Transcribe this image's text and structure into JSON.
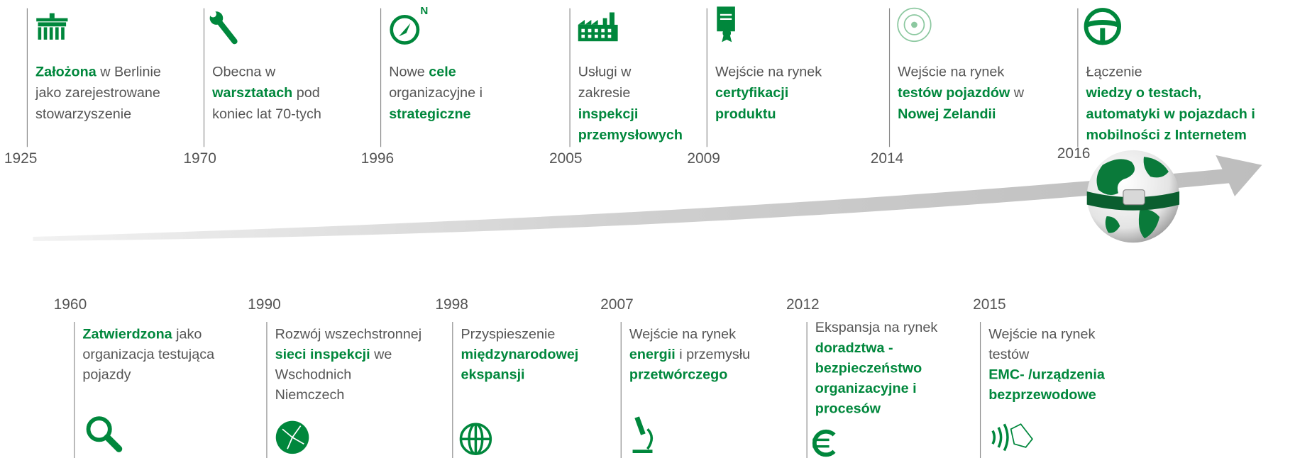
{
  "top_events": [
    {
      "year": "1925",
      "lines": [
        [
          {
            "text": "Założona",
            "emphasis": true
          },
          {
            "text": " w Berlinie"
          }
        ],
        [
          {
            "text": "jako zarejestrowane"
          }
        ],
        [
          {
            "text": "stowarzyszenie"
          }
        ]
      ]
    },
    {
      "year": "1970",
      "lines": [
        [
          {
            "text": "Obecna w"
          }
        ],
        [
          {
            "text": "warsztatach",
            "emphasis": true
          },
          {
            "text": " pod"
          }
        ],
        [
          {
            "text": "koniec lat 70-tych"
          }
        ]
      ]
    },
    {
      "year": "1996",
      "icon_label": "N",
      "lines": [
        [
          {
            "text": "Nowe "
          },
          {
            "text": "cele",
            "emphasis": true
          }
        ],
        [
          {
            "text": "organizacyjne i"
          }
        ],
        [
          {
            "text": "strategiczne",
            "emphasis": true
          }
        ]
      ]
    },
    {
      "year": "2005",
      "lines": [
        [
          {
            "text": "Usługi w"
          }
        ],
        [
          {
            "text": "zakresie"
          }
        ],
        [
          {
            "text": "inspekcji",
            "emphasis": true
          }
        ],
        [
          {
            "text": "przemysłowych",
            "emphasis": true
          }
        ]
      ]
    },
    {
      "year": "2009",
      "lines": [
        [
          {
            "text": "Wejście na rynek"
          }
        ],
        [
          {
            "text": "certyfikacji",
            "emphasis": true
          }
        ],
        [
          {
            "text": "produktu",
            "emphasis": true
          }
        ]
      ]
    },
    {
      "year": "2014",
      "lines": [
        [
          {
            "text": "Wejście na rynek"
          }
        ],
        [
          {
            "text": "testów pojazdów",
            "emphasis": true
          },
          {
            "text": " w"
          }
        ],
        [
          {
            "text": "Nowej Zelandii",
            "emphasis": true
          }
        ]
      ]
    },
    {
      "year": "2016",
      "lines": [
        [
          {
            "text": "Łączenie"
          }
        ],
        [
          {
            "text": "wiedzy o testach,",
            "emphasis": true
          }
        ],
        [
          {
            "text": "automatyki w pojazdach i",
            "emphasis": true
          }
        ],
        [
          {
            "text": "mobilności z Internetem",
            "emphasis": true
          }
        ]
      ]
    }
  ],
  "bottom_events": [
    {
      "year": "1960",
      "lines": [
        [
          {
            "text": "Zatwierdzona",
            "emphasis": true
          },
          {
            "text": " jako"
          }
        ],
        [
          {
            "text": "organizacja testująca"
          }
        ],
        [
          {
            "text": "pojazdy"
          }
        ]
      ]
    },
    {
      "year": "1990",
      "lines": [
        [
          {
            "text": "Rozwój wszechstronnej"
          }
        ],
        [
          {
            "text": "sieci inspekcji",
            "emphasis": true
          },
          {
            "text": " we"
          }
        ],
        [
          {
            "text": "Wschodnich"
          }
        ],
        [
          {
            "text": "Niemczech"
          }
        ]
      ]
    },
    {
      "year": "1998",
      "lines": [
        [
          {
            "text": "Przyspieszenie"
          }
        ],
        [
          {
            "text": "międzynarodowej",
            "emphasis": true
          }
        ],
        [
          {
            "text": "ekspansji",
            "emphasis": true
          }
        ]
      ]
    },
    {
      "year": "2007",
      "lines": [
        [
          {
            "text": "Wejście na rynek"
          }
        ],
        [
          {
            "text": "energii",
            "emphasis": true
          },
          {
            "text": " i przemysłu"
          }
        ],
        [
          {
            "text": "przetwórczego",
            "emphasis": true
          }
        ]
      ]
    },
    {
      "year": "2012",
      "lines": [
        [
          {
            "text": "Ekspansja na rynek"
          }
        ],
        [
          {
            "text": "doradztwa -",
            "emphasis": true
          }
        ],
        [
          {
            "text": "bezpieczeństwo",
            "emphasis": true
          }
        ],
        [
          {
            "text": "organizacyjne i",
            "emphasis": true
          }
        ],
        [
          {
            "text": "procesów",
            "emphasis": true
          }
        ]
      ]
    },
    {
      "year": "2015",
      "lines": [
        [
          {
            "text": "Wejście na rynek"
          }
        ],
        [
          {
            "text": "testów"
          }
        ],
        [
          {
            "text": "EMC- /urządzenia",
            "emphasis": true
          }
        ],
        [
          {
            "text": "bezprzewodowe",
            "emphasis": true
          }
        ]
      ]
    }
  ]
}
